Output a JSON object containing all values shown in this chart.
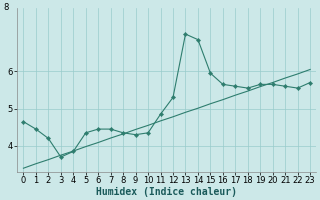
{
  "title": "",
  "xlabel": "Humidex (Indice chaleur)",
  "bg_color": "#cce8e8",
  "grid_color": "#99cccc",
  "line_color": "#2e7d6e",
  "hours": [
    0,
    1,
    2,
    3,
    4,
    5,
    6,
    7,
    8,
    9,
    10,
    11,
    12,
    13,
    14,
    15,
    16,
    17,
    18,
    19,
    20,
    21,
    22,
    23
  ],
  "humidex": [
    4.65,
    4.45,
    4.2,
    3.7,
    3.85,
    4.35,
    4.45,
    4.45,
    4.35,
    4.3,
    4.35,
    4.85,
    5.3,
    7.0,
    6.85,
    5.95,
    5.65,
    5.6,
    5.55,
    5.65,
    5.65,
    5.6,
    5.55,
    5.7
  ],
  "trend": [
    3.4,
    3.52,
    3.63,
    3.75,
    3.86,
    3.98,
    4.09,
    4.21,
    4.32,
    4.44,
    4.55,
    4.67,
    4.78,
    4.9,
    5.01,
    5.13,
    5.24,
    5.36,
    5.47,
    5.59,
    5.7,
    5.82,
    5.93,
    6.05
  ],
  "xlim": [
    -0.5,
    23.5
  ],
  "ylim": [
    3.3,
    7.7
  ],
  "yticks": [
    4,
    5,
    6
  ],
  "ytick_labels": [
    "4",
    "5",
    "6"
  ],
  "y_extra_label": "8",
  "y_extra_pos": 7.7,
  "xticks": [
    0,
    1,
    2,
    3,
    4,
    5,
    6,
    7,
    8,
    9,
    10,
    11,
    12,
    13,
    14,
    15,
    16,
    17,
    18,
    19,
    20,
    21,
    22,
    23
  ],
  "xlabel_fontsize": 7,
  "tick_fontsize": 6,
  "marker_size": 2.2,
  "line_width": 0.8
}
